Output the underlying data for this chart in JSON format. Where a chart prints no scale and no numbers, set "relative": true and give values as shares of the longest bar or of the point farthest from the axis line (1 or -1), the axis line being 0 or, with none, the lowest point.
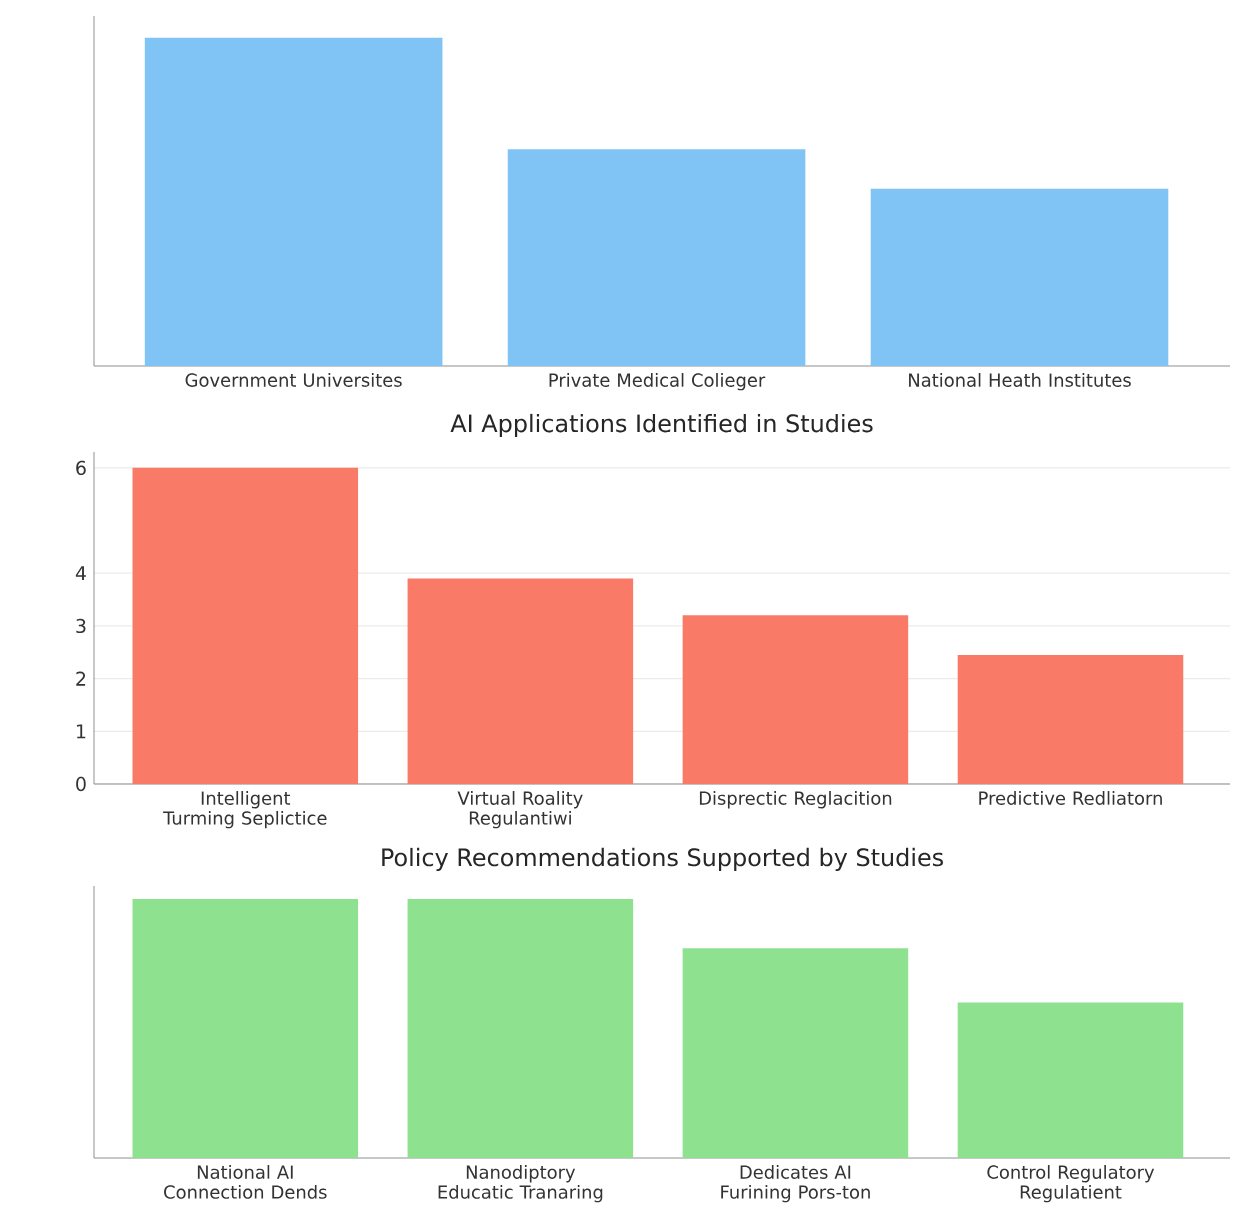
{
  "chart_data": [
    {
      "type": "bar",
      "relative": true,
      "categories": [
        "Government Universites",
        "Private Medical Colieger",
        "National Heath Institutes"
      ],
      "values": [
        1,
        0.66,
        0.54
      ],
      "color": "#7fc4f4"
    },
    {
      "type": "bar",
      "title": "AI Applications Identified in Studies",
      "categories": [
        "Intelligent Turming Seplictice",
        "Virtual Roality Regulantiwi",
        "Disprectic Reglacition",
        "Predictive Redliatorn"
      ],
      "values": [
        6.0,
        3.9,
        3.2,
        2.45
      ],
      "color": "#fa7a68",
      "ylim": [
        0,
        6.3
      ],
      "yticks": [
        0,
        1,
        2,
        3,
        4,
        6
      ],
      "grid": "y"
    },
    {
      "type": "bar",
      "relative": true,
      "title": "Policy Recommendations Supported by Studies",
      "categories": [
        "National AI Connection Dends",
        "Nanodiptory Educatic Tranaring",
        "Dedicates AI Furining Pors-ton",
        "Control Regulatory Regulatient"
      ],
      "values": [
        1,
        1,
        0.81,
        0.6
      ],
      "color": "#8ee28f"
    }
  ]
}
